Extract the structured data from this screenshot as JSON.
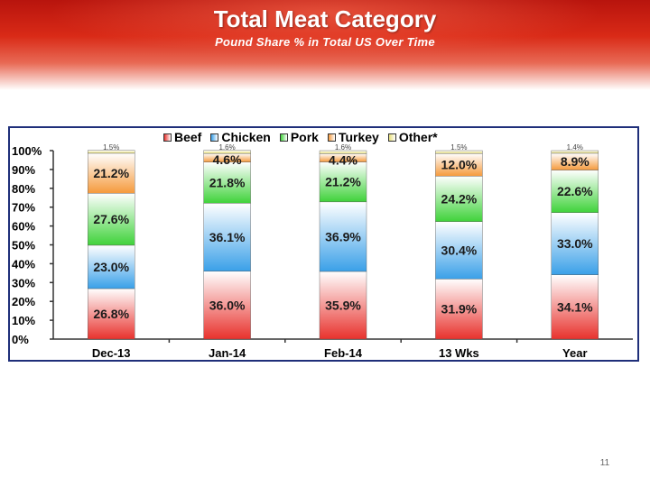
{
  "slide": {
    "title": "Total Meat Category",
    "subtitle": "Pound Share % in Total US Over Time",
    "page_number": "11"
  },
  "chart_data": {
    "type": "bar",
    "stacked": true,
    "categories": [
      "Dec-13",
      "Jan-14",
      "Feb-14",
      "13 Wks",
      "Year"
    ],
    "y_ticks": [
      "0%",
      "10%",
      "20%",
      "30%",
      "40%",
      "50%",
      "60%",
      "70%",
      "80%",
      "90%",
      "100%"
    ],
    "ylim": [
      0,
      100
    ],
    "legend_position": "top",
    "series": [
      {
        "name": "Beef",
        "color": "#e8322d",
        "values": [
          26.8,
          36.0,
          35.9,
          31.9,
          34.1
        ],
        "labels": [
          "26.8%",
          "36.0%",
          "35.9%",
          "31.9%",
          "34.1%"
        ]
      },
      {
        "name": "Chicken",
        "color": "#3aa0e8",
        "values": [
          23.0,
          36.1,
          36.9,
          30.4,
          33.0
        ],
        "labels": [
          "23.0%",
          "36.1%",
          "36.9%",
          "30.4%",
          "33.0%"
        ]
      },
      {
        "name": "Pork",
        "color": "#3fd23a",
        "values": [
          27.6,
          21.8,
          21.2,
          24.2,
          22.6
        ],
        "labels": [
          "27.6%",
          "21.8%",
          "21.2%",
          "24.2%",
          "22.6%"
        ]
      },
      {
        "name": "Turkey",
        "color": "#f59a3c",
        "values": [
          21.2,
          4.6,
          4.4,
          12.0,
          8.9
        ],
        "labels": [
          "21.2%",
          "4.6%",
          "4.4%",
          "12.0%",
          "8.9%"
        ]
      },
      {
        "name": "Other*",
        "color": "#e8e07a",
        "values": [
          1.5,
          1.6,
          1.6,
          1.5,
          1.4
        ],
        "labels": [
          "1.5%",
          "1.6%",
          "1.6%",
          "1.5%",
          "1.4%"
        ]
      }
    ]
  }
}
